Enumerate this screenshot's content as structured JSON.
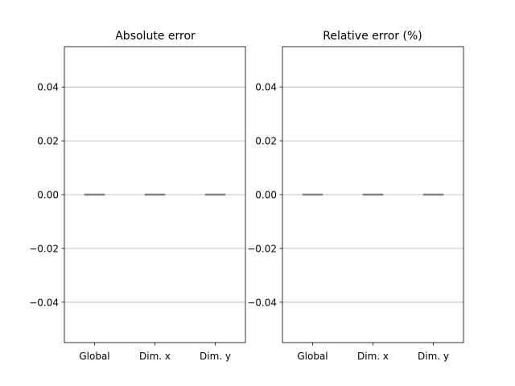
{
  "chart_data": [
    {
      "type": "box",
      "title": "Absolute error",
      "categories": [
        "Global",
        "Dim. x",
        "Dim. y"
      ],
      "series": [
        {
          "values": [
            0,
            0,
            0
          ]
        }
      ],
      "ylim": [
        -0.055,
        0.055
      ],
      "yticks": [
        -0.04,
        -0.02,
        0.0,
        0.02,
        0.04
      ],
      "ytick_labels": [
        "−0.04",
        "−0.02",
        "0.00",
        "0.02",
        "0.04"
      ],
      "grid": "y",
      "colors": {
        "median": "#808080",
        "grid": "#b0b0b0",
        "frame": "#000000"
      }
    },
    {
      "type": "box",
      "title": "Relative error (%)",
      "categories": [
        "Global",
        "Dim. x",
        "Dim. y"
      ],
      "series": [
        {
          "values": [
            0,
            0,
            0
          ]
        }
      ],
      "ylim": [
        -0.055,
        0.055
      ],
      "yticks": [
        -0.04,
        -0.02,
        0.0,
        0.02,
        0.04
      ],
      "ytick_labels": [
        "−0.04",
        "−0.02",
        "0.00",
        "0.02",
        "0.04"
      ],
      "grid": "y",
      "colors": {
        "median": "#808080",
        "grid": "#b0b0b0",
        "frame": "#000000"
      }
    }
  ]
}
